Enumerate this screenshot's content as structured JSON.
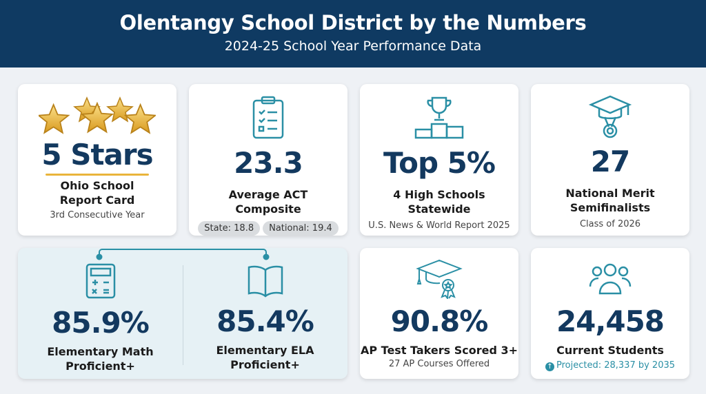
{
  "header": {
    "title": "Olentangy School District by the Numbers",
    "subtitle": "2024-25 School Year Performance Data"
  },
  "colors": {
    "navy": "#0f3a62",
    "number": "#13395f",
    "teal": "#2a8fa5",
    "gold": "#e9b43a"
  },
  "cards": [
    {
      "value": "5 Stars",
      "label_1": "Ohio School",
      "label_2": "Report Card",
      "sub": "3rd Consecutive Year",
      "icon": "five-stars-icon",
      "stars": 5
    },
    {
      "value": "23.3",
      "label_1": "Average ACT",
      "label_2": "Composite",
      "pills": [
        "State: 18.8",
        "National: 19.4"
      ],
      "icon": "clipboard-checklist-icon"
    },
    {
      "value": "Top 5%",
      "label_1": "4 High Schools",
      "label_2": "Statewide",
      "sub": "U.S. News & World Report 2025",
      "icon": "trophy-podium-icon"
    },
    {
      "value": "27",
      "label_1": "National Merit",
      "label_2": "Semifinalists",
      "sub": "Class of 2026",
      "icon": "graduation-medal-icon"
    },
    {
      "value": "85.9%",
      "label_1": "Elementary Math",
      "label_2": "Proficient+",
      "icon": "calculator-icon"
    },
    {
      "value": "85.4%",
      "label_1": "Elementary ELA",
      "label_2": "Proficient+",
      "icon": "open-book-icon"
    },
    {
      "value": "90.8%",
      "label_1": "AP Test Takers Scored 3+",
      "sub": "27 AP Courses Offered",
      "icon": "grad-cap-ribbon-icon"
    },
    {
      "value": "24,458",
      "label_1": "Current Students",
      "sub": "Projected: 28,337 by 2035",
      "icon": "people-group-icon"
    }
  ]
}
